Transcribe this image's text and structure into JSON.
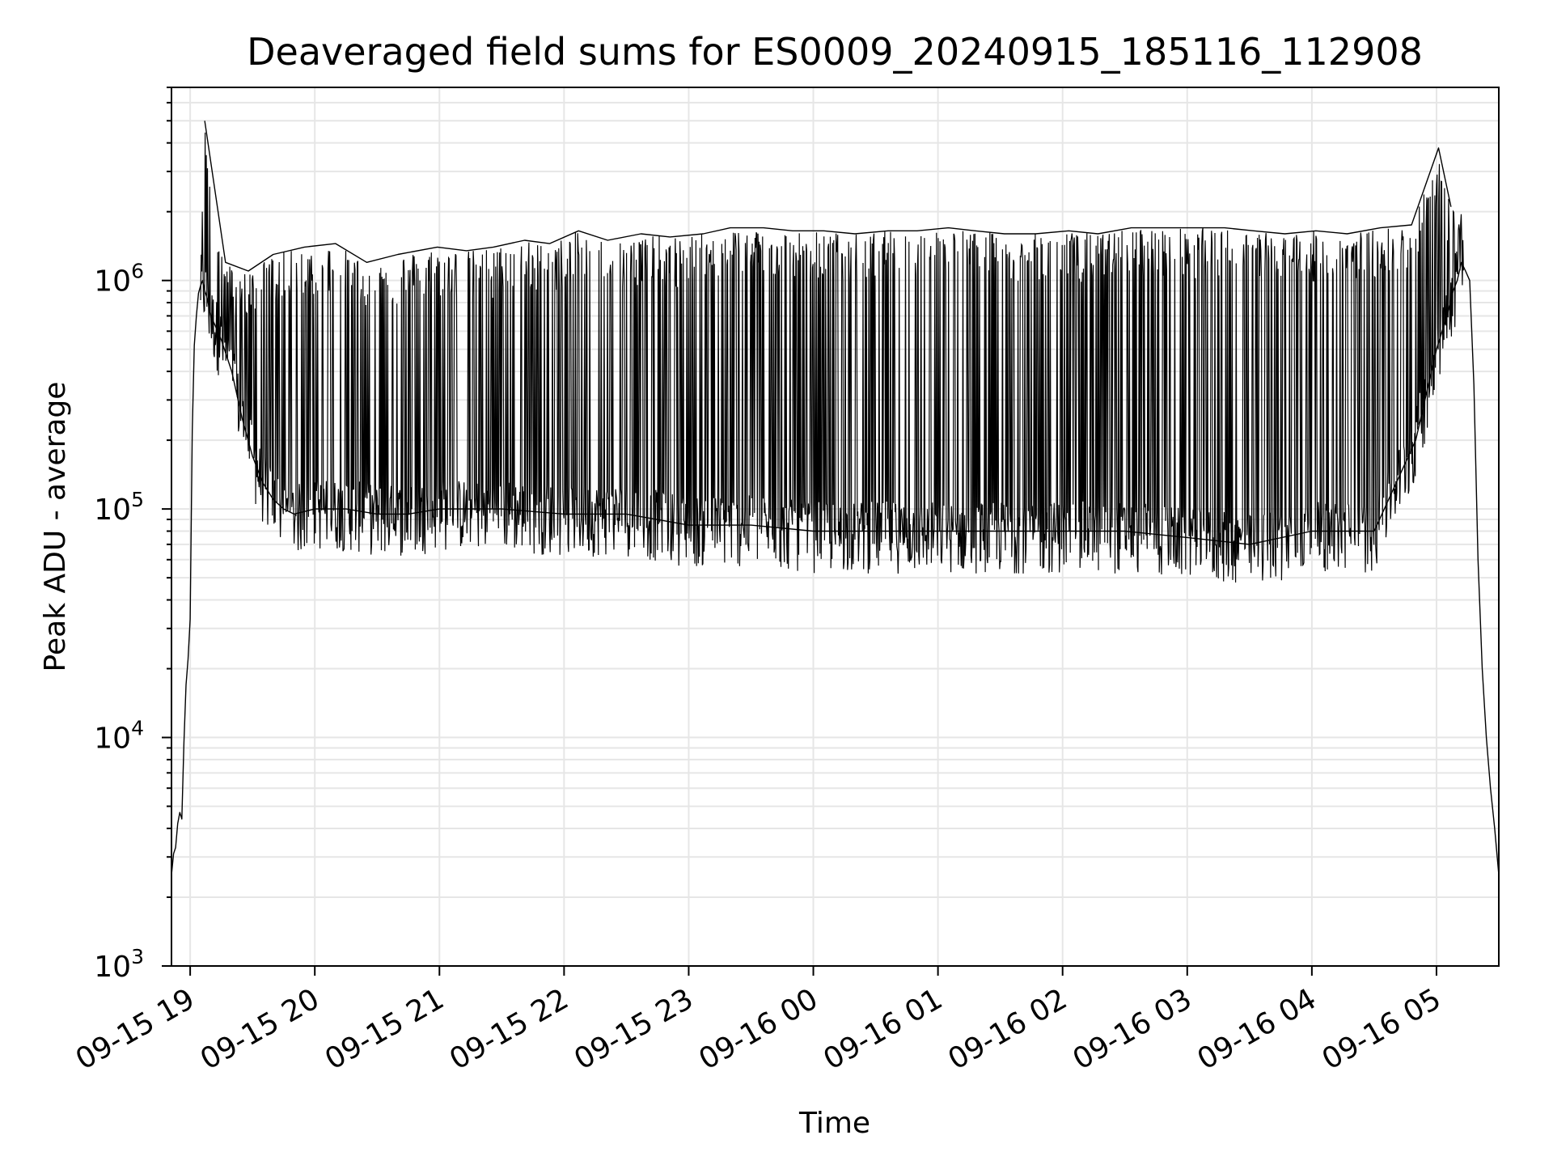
{
  "chart_data": {
    "type": "line",
    "title": "Deaveraged field sums for ES0009_20240915_185116_112908",
    "xlabel": "Time",
    "ylabel": "Peak ADU - average",
    "yscale": "log",
    "ylim": [
      1000,
      7000000
    ],
    "xlim": [
      "2024-09-15 18:51",
      "2024-09-16 05:30"
    ],
    "grid": true,
    "line_color": "#000000",
    "grid_color": "#e6e6e6",
    "x_ticks": [
      {
        "label": "09-15 19",
        "t": "2024-09-15 19:00"
      },
      {
        "label": "09-15 20",
        "t": "2024-09-15 20:00"
      },
      {
        "label": "09-15 21",
        "t": "2024-09-15 21:00"
      },
      {
        "label": "09-15 22",
        "t": "2024-09-15 22:00"
      },
      {
        "label": "09-15 23",
        "t": "2024-09-15 23:00"
      },
      {
        "label": "09-16 00",
        "t": "2024-09-16 00:00"
      },
      {
        "label": "09-16 01",
        "t": "2024-09-16 01:00"
      },
      {
        "label": "09-16 02",
        "t": "2024-09-16 02:00"
      },
      {
        "label": "09-16 03",
        "t": "2024-09-16 03:00"
      },
      {
        "label": "09-16 04",
        "t": "2024-09-16 04:00"
      },
      {
        "label": "09-16 05",
        "t": "2024-09-16 05:00"
      }
    ],
    "y_ticks": [
      {
        "base": "10",
        "exp": "3",
        "value": 1000
      },
      {
        "base": "10",
        "exp": "4",
        "value": 10000
      },
      {
        "base": "10",
        "exp": "5",
        "value": 100000
      },
      {
        "base": "10",
        "exp": "6",
        "value": 1000000
      }
    ],
    "series": [
      {
        "x": [
          "2024-09-15 18:51",
          "2024-09-15 18:52",
          "2024-09-15 18:53",
          "2024-09-15 18:54",
          "2024-09-15 18:55",
          "2024-09-15 18:56",
          "2024-09-15 18:57",
          "2024-09-15 18:58",
          "2024-09-15 18:59",
          "2024-09-15 19:00",
          "2024-09-15 19:01",
          "2024-09-15 19:02",
          "2024-09-15 19:03",
          "2024-09-15 19:04",
          "2024-09-15 19:05",
          "2024-09-15 19:06",
          "2024-09-15 19:07",
          "2024-09-15 19:08",
          "2024-09-15 19:10",
          "2024-09-15 19:15",
          "2024-09-15 19:20",
          "2024-09-15 19:25",
          "2024-09-15 19:30",
          "2024-09-15 19:35",
          "2024-09-15 19:40",
          "2024-09-15 19:45",
          "2024-09-15 19:50",
          "2024-09-15 20:00",
          "2024-09-15 20:15",
          "2024-09-15 20:30",
          "2024-09-15 20:45",
          "2024-09-15 21:00",
          "2024-09-15 21:30",
          "2024-09-15 22:00",
          "2024-09-15 22:30",
          "2024-09-15 23:00",
          "2024-09-15 23:30",
          "2024-09-16 00:00",
          "2024-09-16 00:30",
          "2024-09-16 01:00",
          "2024-09-16 01:30",
          "2024-09-16 02:00",
          "2024-09-16 02:30",
          "2024-09-16 03:00",
          "2024-09-16 03:30",
          "2024-09-16 04:00",
          "2024-09-16 04:30",
          "2024-09-16 04:50",
          "2024-09-16 05:00",
          "2024-09-16 05:05",
          "2024-09-16 05:08",
          "2024-09-16 05:10",
          "2024-09-16 05:12",
          "2024-09-16 05:14",
          "2024-09-16 05:16",
          "2024-09-16 05:18",
          "2024-09-16 05:20",
          "2024-09-16 05:22",
          "2024-09-16 05:24",
          "2024-09-16 05:26",
          "2024-09-16 05:28",
          "2024-09-16 05:30"
        ],
        "y": [
          2500,
          3100,
          3300,
          4200,
          4700,
          4400,
          9500,
          17000,
          22000,
          33000,
          220000,
          520000,
          700000,
          880000,
          950000,
          1000000,
          900000,
          850000,
          700000,
          550000,
          400000,
          250000,
          170000,
          130000,
          110000,
          100000,
          95000,
          100000,
          100000,
          95000,
          95000,
          100000,
          100000,
          95000,
          95000,
          85000,
          85000,
          80000,
          80000,
          80000,
          80000,
          80000,
          80000,
          75000,
          70000,
          80000,
          80000,
          200000,
          500000,
          700000,
          900000,
          1000000,
          1200000,
          1100000,
          1000000,
          350000,
          60000,
          20000,
          10000,
          6000,
          4000,
          2500
        ]
      },
      {
        "x": [
          "2024-09-15 19:07",
          "2024-09-15 19:17",
          "2024-09-15 19:28",
          "2024-09-15 19:40",
          "2024-09-15 19:55",
          "2024-09-15 20:10",
          "2024-09-15 20:25",
          "2024-09-15 20:40",
          "2024-09-15 20:59",
          "2024-09-15 21:13",
          "2024-09-15 21:26",
          "2024-09-15 21:41",
          "2024-09-15 21:53",
          "2024-09-15 22:07",
          "2024-09-15 22:21",
          "2024-09-15 22:37",
          "2024-09-15 22:51",
          "2024-09-15 23:07",
          "2024-09-15 23:20",
          "2024-09-15 23:36",
          "2024-09-15 23:50",
          "2024-09-16 00:05",
          "2024-09-16 00:20",
          "2024-09-16 00:36",
          "2024-09-16 00:50",
          "2024-09-16 01:05",
          "2024-09-16 01:18",
          "2024-09-16 01:32",
          "2024-09-16 01:47",
          "2024-09-16 02:03",
          "2024-09-16 02:17",
          "2024-09-16 02:33",
          "2024-09-16 02:47",
          "2024-09-16 03:02",
          "2024-09-16 03:18",
          "2024-09-16 03:32",
          "2024-09-16 03:47",
          "2024-09-16 04:02",
          "2024-09-16 04:17",
          "2024-09-16 04:33",
          "2024-09-16 04:48",
          "2024-09-16 05:01",
          "2024-09-16 05:07"
        ],
        "y": [
          5000000,
          1200000,
          1100000,
          1300000,
          1400000,
          1450000,
          1200000,
          1300000,
          1400000,
          1350000,
          1400000,
          1500000,
          1450000,
          1650000,
          1500000,
          1600000,
          1550000,
          1600000,
          1700000,
          1700000,
          1650000,
          1650000,
          1600000,
          1650000,
          1650000,
          1700000,
          1650000,
          1600000,
          1600000,
          1650000,
          1600000,
          1700000,
          1700000,
          1700000,
          1700000,
          1650000,
          1600000,
          1650000,
          1600000,
          1700000,
          1750000,
          3800000,
          2100000
        ]
      }
    ]
  }
}
